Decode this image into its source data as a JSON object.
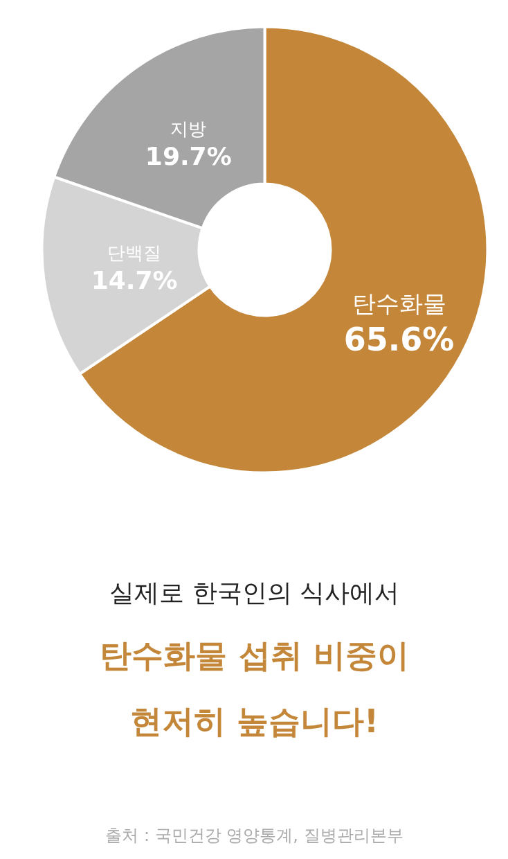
{
  "chart_data": {
    "type": "donut",
    "title": "실제로 한국인의 식사에서",
    "subtitle": "탄수화물 섭취 비중이\n현저히 높습니다!",
    "categories": [
      "탄수화물",
      "단백질",
      "지방"
    ],
    "values": [
      65.6,
      14.7,
      19.7
    ],
    "value_labels": [
      "65.6%",
      "14.7%",
      "19.7%"
    ],
    "colors": [
      "#c4873a",
      "#d4d4d4",
      "#a5a5a5"
    ],
    "annotations": [
      "출처 : 국민건강 영양통계, 질병관리본부"
    ]
  }
}
